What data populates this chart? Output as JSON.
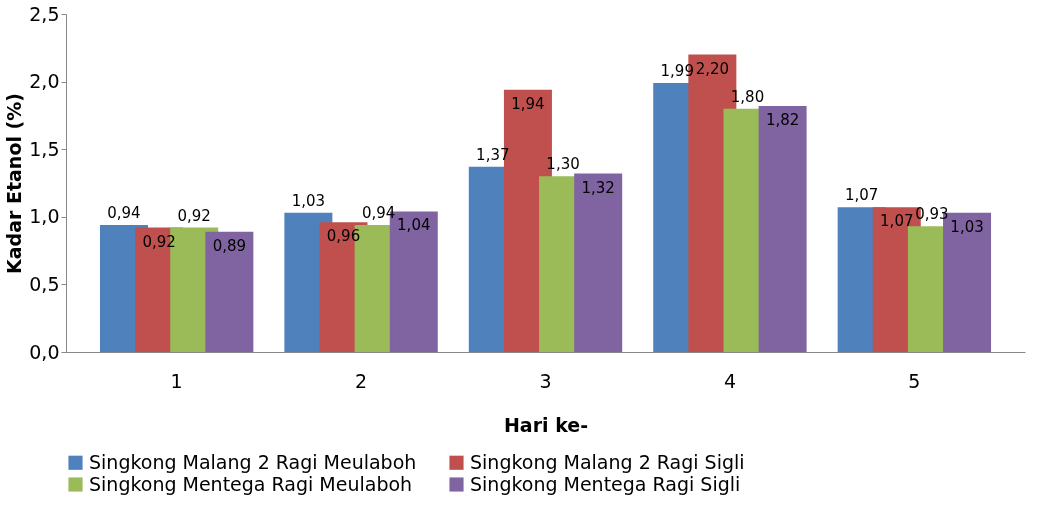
{
  "chart_data": {
    "type": "bar",
    "xlabel": "Hari ke-",
    "ylabel": "Kadar Etanol (%)",
    "categories": [
      "1",
      "2",
      "3",
      "4",
      "5"
    ],
    "series": [
      {
        "name": "Singkong Malang 2 Ragi Meulaboh",
        "color": "#4f81bd",
        "values": [
          0.94,
          1.03,
          1.37,
          1.99,
          1.07
        ],
        "value_labels": [
          "0,94",
          "1,03",
          "1,37",
          "1,99",
          "1,07"
        ]
      },
      {
        "name": "Singkong Malang 2 Ragi Sigli",
        "color": "#c0504d",
        "values": [
          0.92,
          0.96,
          1.94,
          2.2,
          1.07
        ],
        "value_labels": [
          "0,92",
          "0,96",
          "1,94",
          "2,20",
          "1,07"
        ]
      },
      {
        "name": "Singkong Mentega Ragi Meulaboh",
        "color": "#9bbb59",
        "values": [
          0.92,
          0.94,
          1.3,
          1.8,
          0.93
        ],
        "value_labels": [
          "0,92",
          "0,94",
          "1,30",
          "1,80",
          "0,93"
        ]
      },
      {
        "name": "Singkong Mentega Ragi Sigli",
        "color": "#8064a2",
        "values": [
          0.89,
          1.04,
          1.32,
          1.82,
          1.03
        ],
        "value_labels": [
          "0,89",
          "1,04",
          "1,32",
          "1,82",
          "1,03"
        ]
      }
    ],
    "ylim": [
      0,
      2.5
    ],
    "yticks": [
      {
        "value": 0,
        "label": "0,0"
      },
      {
        "value": 0.5,
        "label": "0,5"
      },
      {
        "value": 1,
        "label": "1,0"
      },
      {
        "value": 1.5,
        "label": "1,5"
      },
      {
        "value": 2,
        "label": "2,0"
      },
      {
        "value": 2.5,
        "label": "2,5"
      }
    ],
    "grid": false,
    "legend": "bottom"
  }
}
